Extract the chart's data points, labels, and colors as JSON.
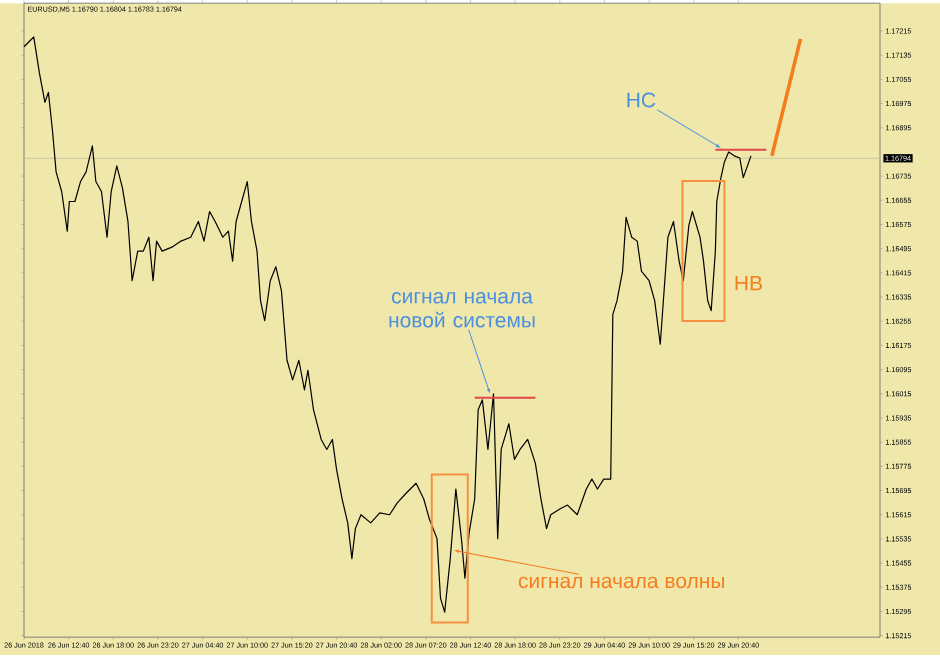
{
  "chart_data": {
    "type": "line",
    "title": "EURUSD,M5 1.16790 1.16804 1.16783 1.16794",
    "marker": "none",
    "line_style": "solid",
    "grid": false,
    "xlim": [
      "2018-06-26T07:20",
      "2018-06-30T13:35"
    ],
    "ylim": [
      1.1521,
      1.17307
    ],
    "xticks": [
      {
        "value": "2018-06-26T07:20",
        "label": "26 Jun 2018"
      },
      {
        "value": "2018-06-26T12:40",
        "label": "26 Jun 12:40"
      },
      {
        "value": "2018-06-26T18:00",
        "label": "26 Jun 18:00"
      },
      {
        "value": "2018-06-26T23:20",
        "label": "26 Jun 23:20"
      },
      {
        "value": "2018-06-27T04:40",
        "label": "27 Jun 04:40"
      },
      {
        "value": "2018-06-27T10:00",
        "label": "27 Jun 10:00"
      },
      {
        "value": "2018-06-27T15:20",
        "label": "27 Jun 15:20"
      },
      {
        "value": "2018-06-27T20:40",
        "label": "27 Jun 20:40"
      },
      {
        "value": "2018-06-28T02:00",
        "label": "28 Jun 02:00"
      },
      {
        "value": "2018-06-28T07:20",
        "label": "28 Jun 07:20"
      },
      {
        "value": "2018-06-28T12:40",
        "label": "28 Jun 12:40"
      },
      {
        "value": "2018-06-28T18:00",
        "label": "28 Jun 18:00"
      },
      {
        "value": "2018-06-28T23:20",
        "label": "28 Jun 23:20"
      },
      {
        "value": "2018-06-29T04:40",
        "label": "29 Jun 04:40"
      },
      {
        "value": "2018-06-29T10:00",
        "label": "29 Jun 10:00"
      },
      {
        "value": "2018-06-29T15:20",
        "label": "29 Jun 15:20"
      },
      {
        "value": "2018-06-29T20:40",
        "label": "29 Jun 20:40"
      }
    ],
    "yticks": [
      1.17215,
      1.17135,
      1.17055,
      1.16975,
      1.16895,
      1.16735,
      1.16655,
      1.16575,
      1.16495,
      1.16415,
      1.16335,
      1.16255,
      1.16175,
      1.16095,
      1.16015,
      1.15935,
      1.15855,
      1.15775,
      1.15695,
      1.15615,
      1.15535,
      1.15455,
      1.15375,
      1.15295,
      1.15215
    ],
    "series": [
      {
        "color": "#000000",
        "x": [
          "2018-06-26T07:20",
          "2018-06-26T08:30",
          "2018-06-26T09:10",
          "2018-06-26T09:50",
          "2018-06-26T10:15",
          "2018-06-26T10:45",
          "2018-06-26T11:10",
          "2018-06-26T11:50",
          "2018-06-26T12:30",
          "2018-06-26T12:45",
          "2018-06-26T13:25",
          "2018-06-26T14:05",
          "2018-06-26T14:45",
          "2018-06-26T15:30",
          "2018-06-26T15:55",
          "2018-06-26T16:35",
          "2018-06-26T17:15",
          "2018-06-26T17:45",
          "2018-06-26T18:25",
          "2018-06-26T19:05",
          "2018-06-26T19:45",
          "2018-06-26T20:15",
          "2018-06-26T20:55",
          "2018-06-26T21:35",
          "2018-06-26T22:15",
          "2018-06-26T22:45",
          "2018-06-26T23:10",
          "2018-06-26T23:50",
          "2018-06-27T01:00",
          "2018-06-27T02:05",
          "2018-06-27T03:15",
          "2018-06-27T04:10",
          "2018-06-27T04:50",
          "2018-06-27T05:30",
          "2018-06-27T06:10",
          "2018-06-27T07:05",
          "2018-06-27T07:45",
          "2018-06-27T08:15",
          "2018-06-27T08:40",
          "2018-06-27T09:20",
          "2018-06-27T10:00",
          "2018-06-27T10:30",
          "2018-06-27T11:10",
          "2018-06-27T11:35",
          "2018-06-27T12:05",
          "2018-06-27T12:45",
          "2018-06-27T13:25",
          "2018-06-27T14:05",
          "2018-06-27T14:45",
          "2018-06-27T15:25",
          "2018-06-27T16:10",
          "2018-06-27T16:50",
          "2018-06-27T17:15",
          "2018-06-27T17:55",
          "2018-06-27T18:50",
          "2018-06-27T19:30",
          "2018-06-27T20:10",
          "2018-06-27T20:40",
          "2018-06-27T21:20",
          "2018-06-27T22:00",
          "2018-06-27T22:30",
          "2018-06-27T22:55",
          "2018-06-27T23:35",
          "2018-06-28T00:45",
          "2018-06-28T01:50",
          "2018-06-28T03:00",
          "2018-06-28T03:55",
          "2018-06-28T05:00",
          "2018-06-28T06:10",
          "2018-06-28T07:05",
          "2018-06-28T07:45",
          "2018-06-28T08:40",
          "2018-06-28T09:05",
          "2018-06-28T09:35",
          "2018-06-28T10:15",
          "2018-06-28T10:55",
          "2018-06-28T11:35",
          "2018-06-28T12:00",
          "2018-06-28T12:30",
          "2018-06-28T13:10",
          "2018-06-28T13:35",
          "2018-06-28T14:05",
          "2018-06-28T14:45",
          "2018-06-28T15:25",
          "2018-06-28T15:55",
          "2018-06-28T16:20",
          "2018-06-28T17:15",
          "2018-06-28T17:55",
          "2018-06-28T18:35",
          "2018-06-28T19:30",
          "2018-06-28T20:25",
          "2018-06-28T21:05",
          "2018-06-28T21:45",
          "2018-06-28T22:15",
          "2018-06-28T23:20",
          "2018-06-29T00:15",
          "2018-06-29T01:25",
          "2018-06-29T02:30",
          "2018-06-29T03:10",
          "2018-06-29T03:50",
          "2018-06-29T04:35",
          "2018-06-29T05:25",
          "2018-06-29T05:40",
          "2018-06-29T06:10",
          "2018-06-29T06:50",
          "2018-06-29T07:15",
          "2018-06-29T07:55",
          "2018-06-29T08:35",
          "2018-06-29T09:05",
          "2018-06-29T10:00",
          "2018-06-29T10:40",
          "2018-06-29T11:20",
          "2018-06-29T12:15",
          "2018-06-29T12:55",
          "2018-06-29T13:35",
          "2018-06-29T14:05",
          "2018-06-29T14:45",
          "2018-06-29T15:10",
          "2018-06-29T16:05",
          "2018-06-29T16:30",
          "2018-06-29T17:00",
          "2018-06-29T17:25",
          "2018-06-29T17:55",
          "2018-06-29T18:05",
          "2018-06-29T18:35",
          "2018-06-29T19:00",
          "2018-06-29T19:30",
          "2018-06-29T20:10",
          "2018-06-29T20:50",
          "2018-06-29T21:15",
          "2018-06-29T21:45",
          "2018-06-29T22:10"
        ],
        "values": [
          1.17163,
          1.17195,
          1.17077,
          1.16979,
          1.17012,
          1.16881,
          1.16749,
          1.16684,
          1.16553,
          1.16651,
          1.16651,
          1.16717,
          1.16749,
          1.16835,
          1.16717,
          1.16684,
          1.16533,
          1.16684,
          1.16769,
          1.16697,
          1.16585,
          1.16389,
          1.16487,
          1.16487,
          1.16533,
          1.16389,
          1.1652,
          1.16487,
          1.165,
          1.1652,
          1.16533,
          1.16585,
          1.1652,
          1.16618,
          1.16585,
          1.16533,
          1.16553,
          1.16454,
          1.16585,
          1.16651,
          1.16717,
          1.16585,
          1.16487,
          1.16323,
          1.16257,
          1.16389,
          1.16435,
          1.16356,
          1.16126,
          1.16061,
          1.16126,
          1.16028,
          1.16093,
          1.15962,
          1.15864,
          1.15831,
          1.15864,
          1.15765,
          1.15667,
          1.15588,
          1.1547,
          1.15569,
          1.15615,
          1.15588,
          1.15621,
          1.15615,
          1.15654,
          1.15687,
          1.15719,
          1.15667,
          1.15601,
          1.15536,
          1.15339,
          1.15293,
          1.1547,
          1.157,
          1.15536,
          1.15405,
          1.15555,
          1.15667,
          1.15962,
          1.15995,
          1.15831,
          1.16015,
          1.15536,
          1.15831,
          1.15916,
          1.15798,
          1.15831,
          1.15864,
          1.15785,
          1.15667,
          1.15569,
          1.15615,
          1.15634,
          1.15647,
          1.15615,
          1.157,
          1.15733,
          1.157,
          1.15733,
          1.15733,
          1.16277,
          1.16323,
          1.16421,
          1.16599,
          1.16533,
          1.1652,
          1.16421,
          1.16389,
          1.16323,
          1.16179,
          1.16533,
          1.16585,
          1.16454,
          1.16389,
          1.16572,
          1.16618,
          1.16533,
          1.16454,
          1.16323,
          1.1629,
          1.16487,
          1.16651,
          1.1673,
          1.16782,
          1.16815,
          1.16802,
          1.16795,
          1.1673,
          1.16769,
          1.16802
        ]
      },
      {
        "color": "#e2474b",
        "x": [
          "2018-06-28T13:10",
          "2018-06-28T20:25"
        ],
        "values": [
          1.16002,
          1.16002
        ]
      },
      {
        "color": "#e2474b",
        "x": [
          "2018-06-29T17:55",
          "2018-06-30T00:00"
        ],
        "values": [
          1.16822,
          1.16822
        ]
      },
      {
        "color": "#f57c1f",
        "x": [
          "2018-06-30T00:40",
          "2018-06-30T04:05"
        ],
        "values": [
          1.16802,
          1.17189
        ]
      }
    ],
    "ref_lines": [
      {
        "axis": "y",
        "value": 1.16794,
        "label": "1.16794",
        "color": "#c9c3a3"
      }
    ],
    "annotations": [
      {
        "text": "НС",
        "x": "2018-06-29T18:35",
        "y": 1.16828
      },
      {
        "text": "сигнал начала новой системы",
        "x": "2018-06-28T15:00",
        "y": 1.16015
      },
      {
        "text": "НВ",
        "x": "2018-06-29T19:00",
        "y": 1.16487
      },
      {
        "text": "сигнал начала волны",
        "x": "2018-06-28T10:40",
        "y": 1.15497
      }
    ]
  }
}
